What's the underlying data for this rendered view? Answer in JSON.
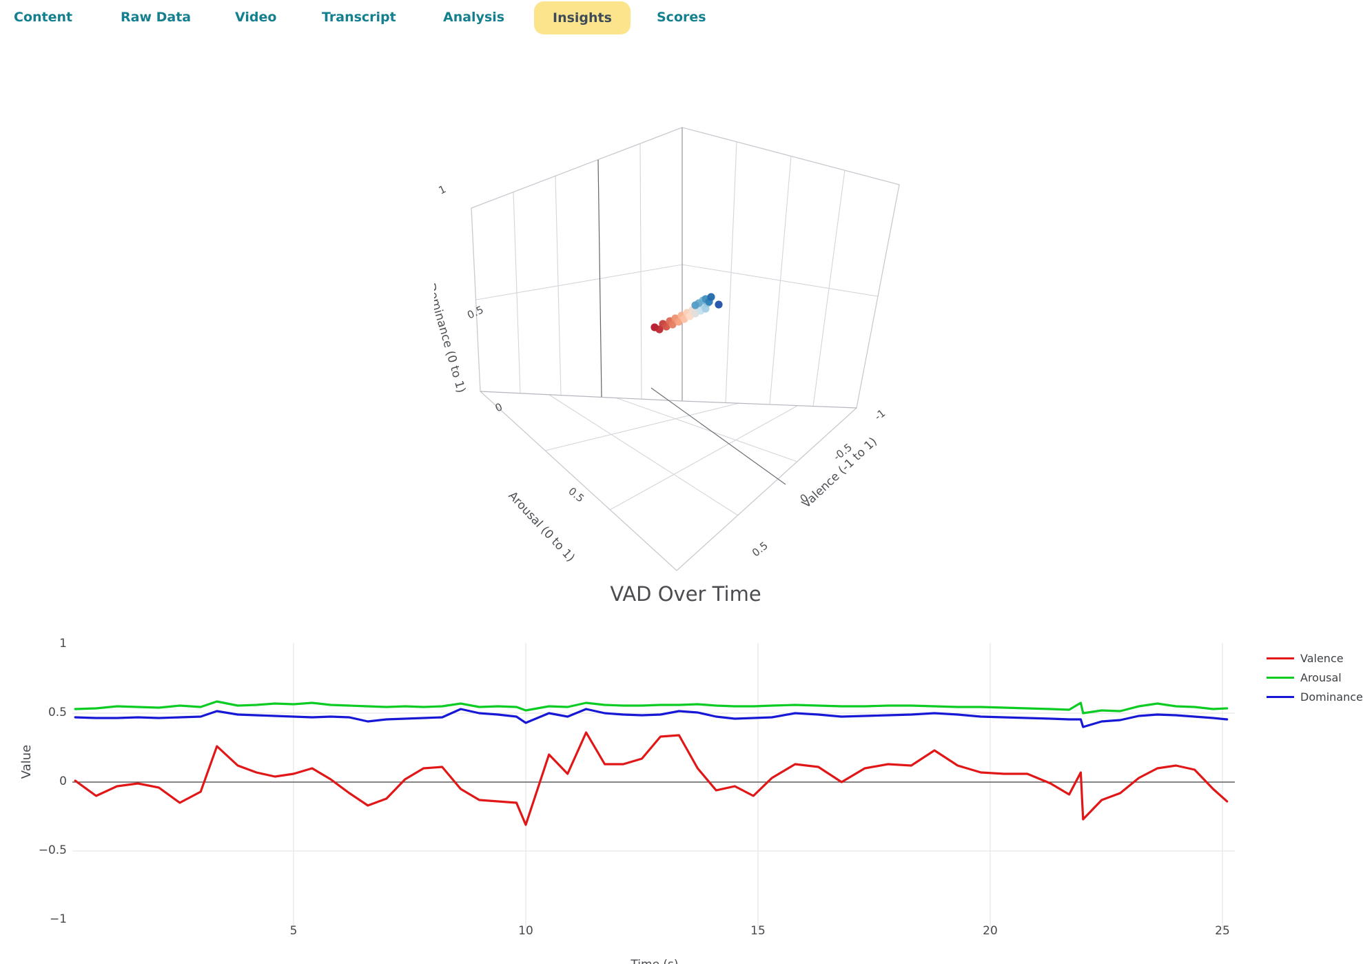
{
  "tabs": {
    "items": [
      {
        "label": "Content"
      },
      {
        "label": "Raw Data"
      },
      {
        "label": "Video"
      },
      {
        "label": "Transcript"
      },
      {
        "label": "Analysis"
      },
      {
        "label": "Insights"
      },
      {
        "label": "Scores"
      }
    ],
    "active": "Insights",
    "accent_color": "#14808f",
    "active_pill_color": "#fbe48c"
  },
  "chart_data": [
    {
      "type": "scatter",
      "subtype": "scatter3d",
      "title": "",
      "axes": {
        "x": {
          "label": "Valence (-1 to 1)",
          "range": [
            -1,
            1
          ],
          "ticks_visible": [
            "-1",
            "-0.5",
            "0",
            "0.5"
          ]
        },
        "y": {
          "label": "Arousal (0 to 1)",
          "range": [
            0,
            1
          ],
          "ticks_visible": [
            "0",
            "0.5"
          ]
        },
        "z": {
          "label": "Dominance (0 to 1)",
          "range": [
            0,
            1
          ],
          "ticks_visible": [
            "0",
            "0.5",
            "1"
          ]
        }
      },
      "description": "Compact cluster of markers near mid arousal/dominance, spread along valence; colors run dark red through beige to dark blue",
      "points_projected": [
        [
          320,
          335,
          "#b2182b"
        ],
        [
          327,
          338,
          "#ba2832"
        ],
        [
          332,
          330,
          "#c63d3b"
        ],
        [
          337,
          334,
          "#d25446"
        ],
        [
          342,
          326,
          "#dc6853"
        ],
        [
          346,
          331,
          "#e67d60"
        ],
        [
          350,
          322,
          "#ee9070"
        ],
        [
          355,
          327,
          "#f4a282"
        ],
        [
          359,
          318,
          "#f8b293"
        ],
        [
          363,
          323,
          "#fbc1a5"
        ],
        [
          367,
          314,
          "#fccfb6"
        ],
        [
          371,
          319,
          "#fddbc7"
        ],
        [
          375,
          310,
          "#f0dcd1"
        ],
        [
          379,
          315,
          "#e2ddda"
        ],
        [
          383,
          306,
          "#d4dfe5"
        ],
        [
          387,
          311,
          "#c6e0ee"
        ],
        [
          391,
          303,
          "#b4d8ea"
        ],
        [
          394,
          308,
          "#a3cfe4"
        ],
        [
          397,
          300,
          "#91c5de"
        ],
        [
          390,
          296,
          "#7cb8d7"
        ],
        [
          384,
          300,
          "#67aacf"
        ],
        [
          379,
          303,
          "#539cc7"
        ],
        [
          394,
          294,
          "#4190c0"
        ],
        [
          399,
          298,
          "#3080b8"
        ],
        [
          402,
          291,
          "#2369ad"
        ],
        [
          413,
          302,
          "#2150a8"
        ]
      ],
      "ticks_3d": {
        "dominance": [
          [
            "1",
            14,
            140
          ],
          [
            "0.5",
            62,
            318
          ],
          [
            "0",
            96,
            456
          ]
        ],
        "arousal": [
          [
            "0.5",
            203,
            582
          ]
        ],
        "valence": [
          [
            "-1",
            650,
            466
          ],
          [
            "-0.5",
            596,
            520
          ],
          [
            "0",
            540,
            587
          ],
          [
            "0.5",
            476,
            661
          ]
        ]
      }
    },
    {
      "type": "line",
      "title": "VAD Over Time",
      "xlabel": "Time (s)",
      "ylabel": "Value",
      "xlim": [
        0.2,
        25.3
      ],
      "ylim": [
        -1,
        1
      ],
      "xticks": [
        5,
        10,
        15,
        20,
        25
      ],
      "yticks": [
        1,
        0.5,
        0,
        -0.5,
        -1
      ],
      "grid": true,
      "legend_position": "right",
      "x": [
        0.3,
        0.75,
        1.2,
        1.65,
        2.1,
        2.55,
        3.0,
        3.35,
        3.8,
        4.2,
        4.6,
        5.0,
        5.4,
        5.8,
        6.2,
        6.6,
        7.0,
        7.4,
        7.8,
        8.2,
        8.6,
        9.0,
        9.4,
        9.8,
        10.0,
        10.5,
        10.9,
        11.3,
        11.7,
        12.1,
        12.5,
        12.9,
        13.3,
        13.7,
        14.1,
        14.5,
        14.9,
        15.3,
        15.8,
        16.3,
        16.8,
        17.3,
        17.8,
        18.3,
        18.8,
        19.3,
        19.8,
        20.3,
        20.8,
        21.3,
        21.7,
        21.95,
        22.0,
        22.4,
        22.8,
        23.2,
        23.6,
        24.0,
        24.4,
        24.8,
        25.1
      ],
      "series": [
        {
          "name": "Valence",
          "color": "#e11717",
          "values": [
            0.01,
            -0.1,
            -0.03,
            -0.01,
            -0.04,
            -0.15,
            -0.07,
            0.26,
            0.12,
            0.07,
            0.04,
            0.06,
            0.1,
            0.02,
            -0.08,
            -0.17,
            -0.12,
            0.02,
            0.1,
            0.11,
            -0.05,
            -0.13,
            -0.14,
            -0.15,
            -0.31,
            0.2,
            0.06,
            0.36,
            0.13,
            0.13,
            0.17,
            0.33,
            0.34,
            0.1,
            -0.06,
            -0.03,
            -0.1,
            0.03,
            0.13,
            0.11,
            0.0,
            0.1,
            0.13,
            0.12,
            0.23,
            0.12,
            0.07,
            0.06,
            0.06,
            -0.01,
            -0.09,
            0.07,
            -0.27,
            -0.13,
            -0.08,
            0.03,
            0.1,
            0.12,
            0.09,
            -0.05,
            -0.14
          ]
        },
        {
          "name": "Arousal",
          "color": "#0ccc24",
          "values": [
            0.53,
            0.535,
            0.55,
            0.545,
            0.54,
            0.555,
            0.545,
            0.585,
            0.555,
            0.56,
            0.57,
            0.565,
            0.575,
            0.56,
            0.555,
            0.55,
            0.545,
            0.55,
            0.545,
            0.55,
            0.57,
            0.545,
            0.55,
            0.545,
            0.52,
            0.55,
            0.545,
            0.575,
            0.56,
            0.555,
            0.555,
            0.56,
            0.56,
            0.565,
            0.555,
            0.55,
            0.55,
            0.555,
            0.56,
            0.555,
            0.55,
            0.55,
            0.555,
            0.555,
            0.55,
            0.545,
            0.545,
            0.54,
            0.535,
            0.53,
            0.525,
            0.575,
            0.5,
            0.52,
            0.515,
            0.55,
            0.57,
            0.55,
            0.545,
            0.53,
            0.535
          ]
        },
        {
          "name": "Dominance",
          "color": "#1717d6",
          "values": [
            0.47,
            0.465,
            0.465,
            0.47,
            0.465,
            0.47,
            0.475,
            0.515,
            0.49,
            0.485,
            0.48,
            0.475,
            0.47,
            0.475,
            0.47,
            0.44,
            0.455,
            0.46,
            0.465,
            0.47,
            0.53,
            0.5,
            0.49,
            0.475,
            0.43,
            0.5,
            0.475,
            0.53,
            0.5,
            0.49,
            0.485,
            0.49,
            0.515,
            0.505,
            0.475,
            0.46,
            0.465,
            0.47,
            0.5,
            0.49,
            0.475,
            0.48,
            0.485,
            0.49,
            0.5,
            0.49,
            0.475,
            0.47,
            0.465,
            0.46,
            0.455,
            0.455,
            0.4,
            0.44,
            0.45,
            0.48,
            0.49,
            0.485,
            0.475,
            0.465,
            0.455
          ]
        }
      ]
    }
  ],
  "colors": {
    "grid": "#e6e6e6",
    "zero_line": "#3f3f3f",
    "tick_text": "#45484d",
    "wireframe": "#d2d5da"
  }
}
